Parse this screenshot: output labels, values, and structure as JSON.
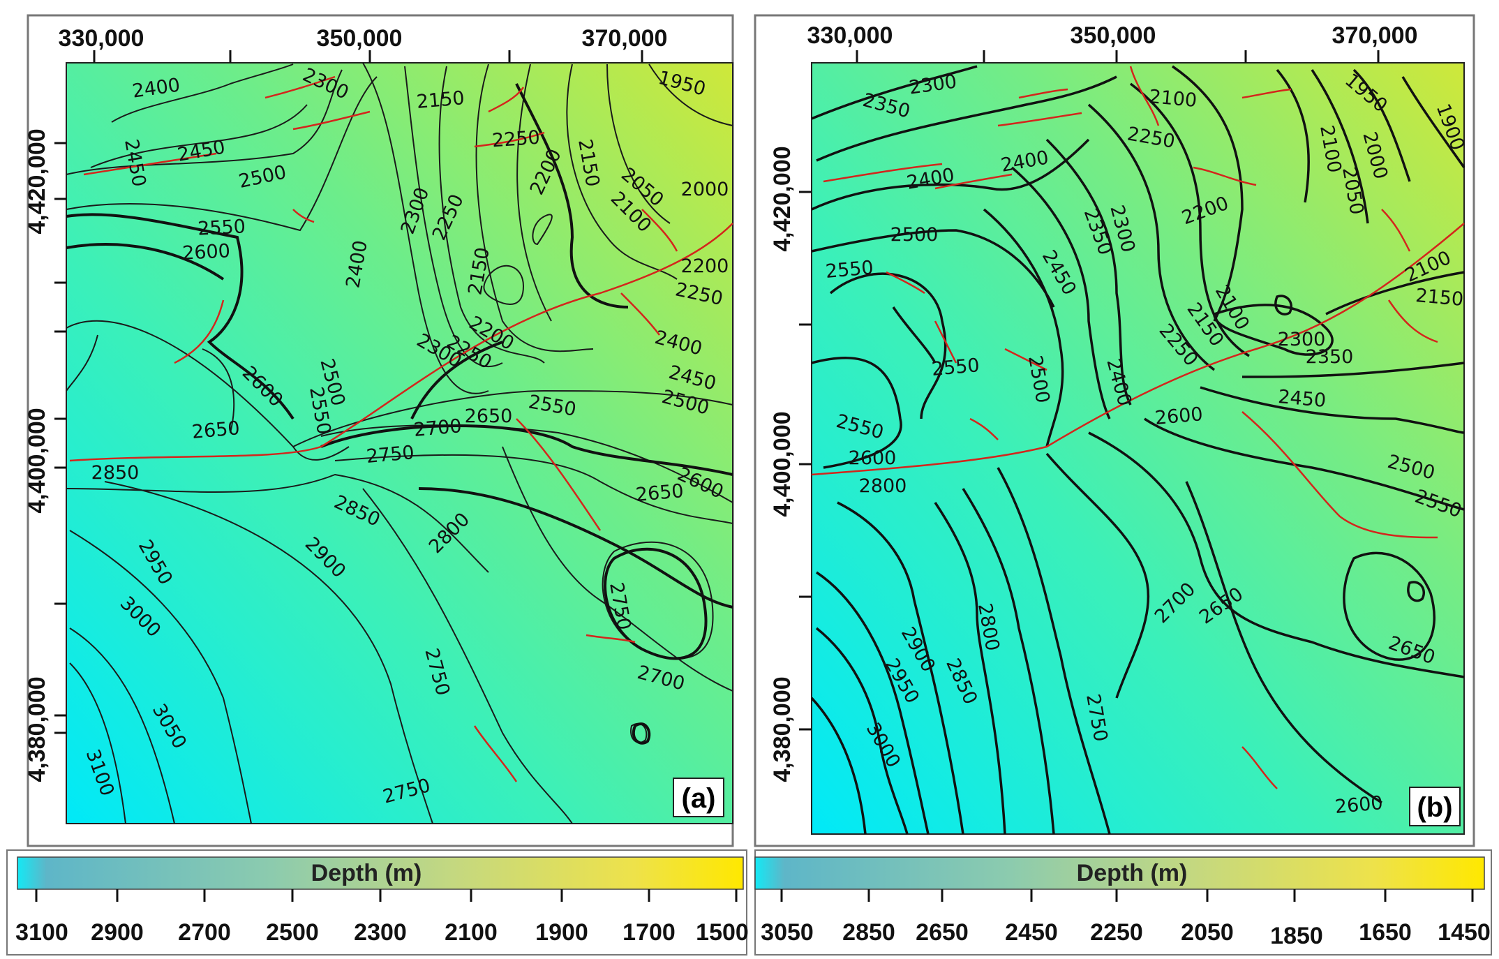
{
  "panels": [
    {
      "tag": "(a)",
      "x_ticks": [
        "330,000",
        "350,000",
        "370,000"
      ],
      "y_ticks": [
        "4,420,000",
        "4,400,000",
        "4,380,000"
      ],
      "colorbar": {
        "title": "Depth (m)",
        "ticks": [
          "3100",
          "2900",
          "2700",
          "2500",
          "2300",
          "2100",
          "1900",
          "1700",
          "1500"
        ]
      },
      "contour_labels": [
        "2400",
        "2300",
        "2150",
        "1950",
        "2450",
        "2450",
        "2500",
        "2250",
        "2200",
        "2150",
        "2050",
        "2000",
        "2550",
        "2600",
        "2300",
        "2250",
        "2100",
        "2400",
        "2150",
        "2200",
        "2250",
        "2600",
        "2300",
        "2200",
        "2250",
        "2400",
        "2500",
        "2450",
        "2550",
        "2500",
        "2650",
        "2700",
        "2650",
        "2550",
        "2600",
        "2850",
        "2750",
        "2650",
        "2850",
        "2800",
        "2900",
        "2950",
        "3000",
        "2750",
        "3050",
        "2750",
        "2700",
        "3100",
        "2750"
      ],
      "faults": "red fault traces",
      "colors": {
        "deep": "#00e8f6",
        "mid": "#3cf0b4",
        "shallow": "#c3e83e"
      }
    },
    {
      "tag": "(b)",
      "x_ticks": [
        "330,000",
        "350,000",
        "370,000"
      ],
      "y_ticks": [
        "4,420,000",
        "4,400,000",
        "4,380,000"
      ],
      "colorbar": {
        "title": "Depth (m)",
        "ticks": [
          "3050",
          "2850",
          "2650",
          "2450",
          "2250",
          "2050",
          "1850",
          "1650",
          "1450"
        ]
      },
      "contour_labels": [
        "2300",
        "2350",
        "2100",
        "1950",
        "1900",
        "2250",
        "2100",
        "2000",
        "2050",
        "2400",
        "2400",
        "2200",
        "2350",
        "2300",
        "2500",
        "2550",
        "2450",
        "2100",
        "2150",
        "2100",
        "2150",
        "2250",
        "2300",
        "2350",
        "2550",
        "2500",
        "2400",
        "2450",
        "2600",
        "2550",
        "2600",
        "2800",
        "2500",
        "2550",
        "2700",
        "2650",
        "2800",
        "2900",
        "2850",
        "2650",
        "2950",
        "2750",
        "3000",
        "2600"
      ],
      "faults": "red fault traces",
      "colors": {
        "deep": "#00e8f6",
        "mid": "#3cf0b4",
        "shallow": "#c3e83e"
      }
    }
  ]
}
